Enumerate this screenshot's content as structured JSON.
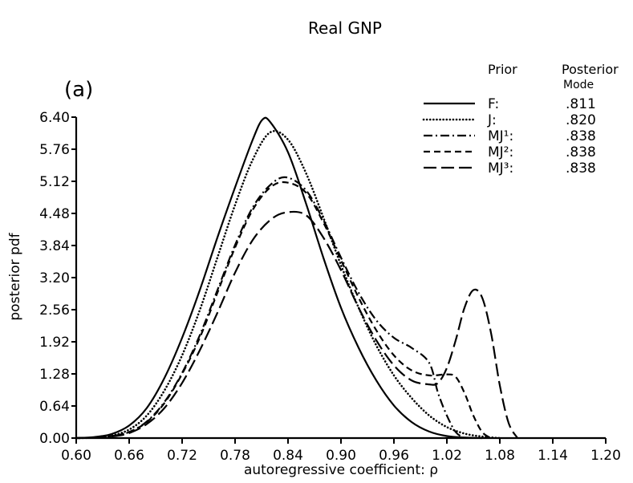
{
  "chart_data": {
    "type": "line",
    "title": "Real GNP",
    "panel_label": "(a)",
    "xlabel": "autoregressive coefficient: ρ",
    "ylabel": "posterior pdf",
    "xlim": [
      0.6,
      1.2
    ],
    "ylim": [
      0.0,
      6.4
    ],
    "x_ticks": [
      "0.60",
      "0.66",
      "0.72",
      "0.78",
      "0.84",
      "0.90",
      "0.96",
      "1.02",
      "1.08",
      "1.14",
      "1.20"
    ],
    "y_ticks": [
      "0.00",
      "0.64",
      "1.28",
      "1.92",
      "2.56",
      "3.20",
      "3.84",
      "4.48",
      "5.12",
      "5.76",
      "6.40"
    ],
    "grid": false,
    "legend": {
      "placement": "top-right",
      "header_prior": "Prior",
      "header_mode_line1": "Posterior",
      "header_mode_line2": "Mode",
      "entries": [
        {
          "label": "F:",
          "mode": ".811"
        },
        {
          "label": "J:",
          "mode": ".820"
        },
        {
          "label": "MJ¹:",
          "mode": ".838"
        },
        {
          "label": "MJ²:",
          "mode": ".838"
        },
        {
          "label": "MJ³:",
          "mode": ".838"
        }
      ]
    },
    "series": [
      {
        "name": "F",
        "dash": "solid",
        "points": [
          [
            0.6,
            0.0
          ],
          [
            0.62,
            0.02
          ],
          [
            0.64,
            0.08
          ],
          [
            0.66,
            0.25
          ],
          [
            0.68,
            0.6
          ],
          [
            0.7,
            1.2
          ],
          [
            0.72,
            2.0
          ],
          [
            0.74,
            2.95
          ],
          [
            0.76,
            4.0
          ],
          [
            0.78,
            5.0
          ],
          [
            0.8,
            5.95
          ],
          [
            0.811,
            6.35
          ],
          [
            0.82,
            6.3
          ],
          [
            0.84,
            5.7
          ],
          [
            0.86,
            4.7
          ],
          [
            0.88,
            3.6
          ],
          [
            0.9,
            2.6
          ],
          [
            0.92,
            1.8
          ],
          [
            0.94,
            1.15
          ],
          [
            0.96,
            0.65
          ],
          [
            0.98,
            0.32
          ],
          [
            1.0,
            0.13
          ],
          [
            1.02,
            0.04
          ],
          [
            1.04,
            0.01
          ],
          [
            1.06,
            0.0
          ]
        ]
      },
      {
        "name": "J",
        "dash": "dotted",
        "points": [
          [
            0.6,
            0.0
          ],
          [
            0.62,
            0.01
          ],
          [
            0.64,
            0.05
          ],
          [
            0.66,
            0.17
          ],
          [
            0.68,
            0.45
          ],
          [
            0.7,
            0.95
          ],
          [
            0.72,
            1.65
          ],
          [
            0.74,
            2.55
          ],
          [
            0.76,
            3.6
          ],
          [
            0.78,
            4.65
          ],
          [
            0.8,
            5.55
          ],
          [
            0.82,
            6.1
          ],
          [
            0.84,
            5.95
          ],
          [
            0.86,
            5.3
          ],
          [
            0.88,
            4.4
          ],
          [
            0.9,
            3.45
          ],
          [
            0.92,
            2.6
          ],
          [
            0.94,
            1.85
          ],
          [
            0.96,
            1.25
          ],
          [
            0.98,
            0.8
          ],
          [
            1.0,
            0.45
          ],
          [
            1.02,
            0.22
          ],
          [
            1.04,
            0.09
          ],
          [
            1.06,
            0.03
          ],
          [
            1.08,
            0.0
          ]
        ]
      },
      {
        "name": "MJ1",
        "dash": "dashdot",
        "points": [
          [
            0.6,
            0.0
          ],
          [
            0.62,
            0.01
          ],
          [
            0.64,
            0.04
          ],
          [
            0.66,
            0.12
          ],
          [
            0.68,
            0.33
          ],
          [
            0.7,
            0.72
          ],
          [
            0.72,
            1.3
          ],
          [
            0.74,
            2.05
          ],
          [
            0.76,
            2.95
          ],
          [
            0.78,
            3.85
          ],
          [
            0.8,
            4.6
          ],
          [
            0.82,
            5.05
          ],
          [
            0.838,
            5.2
          ],
          [
            0.86,
            4.95
          ],
          [
            0.88,
            4.35
          ],
          [
            0.9,
            3.6
          ],
          [
            0.92,
            2.9
          ],
          [
            0.94,
            2.35
          ],
          [
            0.96,
            2.0
          ],
          [
            0.98,
            1.8
          ],
          [
            1.0,
            1.5
          ],
          [
            1.01,
            0.9
          ],
          [
            1.02,
            0.45
          ],
          [
            1.03,
            0.12
          ],
          [
            1.04,
            0.0
          ]
        ]
      },
      {
        "name": "MJ2",
        "dash": "dashed",
        "points": [
          [
            0.6,
            0.0
          ],
          [
            0.62,
            0.01
          ],
          [
            0.64,
            0.04
          ],
          [
            0.66,
            0.12
          ],
          [
            0.68,
            0.32
          ],
          [
            0.7,
            0.7
          ],
          [
            0.72,
            1.28
          ],
          [
            0.74,
            2.0
          ],
          [
            0.76,
            2.9
          ],
          [
            0.78,
            3.8
          ],
          [
            0.8,
            4.55
          ],
          [
            0.82,
            5.0
          ],
          [
            0.838,
            5.1
          ],
          [
            0.86,
            4.9
          ],
          [
            0.88,
            4.3
          ],
          [
            0.9,
            3.55
          ],
          [
            0.92,
            2.8
          ],
          [
            0.94,
            2.15
          ],
          [
            0.96,
            1.65
          ],
          [
            0.98,
            1.35
          ],
          [
            1.0,
            1.25
          ],
          [
            1.02,
            1.27
          ],
          [
            1.03,
            1.22
          ],
          [
            1.04,
            0.9
          ],
          [
            1.05,
            0.45
          ],
          [
            1.06,
            0.12
          ],
          [
            1.07,
            0.0
          ]
        ]
      },
      {
        "name": "MJ3",
        "dash": "longdash",
        "points": [
          [
            0.6,
            0.0
          ],
          [
            0.62,
            0.01
          ],
          [
            0.64,
            0.03
          ],
          [
            0.66,
            0.1
          ],
          [
            0.68,
            0.28
          ],
          [
            0.7,
            0.6
          ],
          [
            0.72,
            1.1
          ],
          [
            0.74,
            1.75
          ],
          [
            0.76,
            2.5
          ],
          [
            0.78,
            3.3
          ],
          [
            0.8,
            3.95
          ],
          [
            0.82,
            4.35
          ],
          [
            0.838,
            4.5
          ],
          [
            0.86,
            4.45
          ],
          [
            0.88,
            4.0
          ],
          [
            0.9,
            3.35
          ],
          [
            0.92,
            2.6
          ],
          [
            0.94,
            1.95
          ],
          [
            0.96,
            1.45
          ],
          [
            0.98,
            1.15
          ],
          [
            1.0,
            1.07
          ],
          [
            1.01,
            1.1
          ],
          [
            1.02,
            1.4
          ],
          [
            1.03,
            1.95
          ],
          [
            1.04,
            2.6
          ],
          [
            1.05,
            2.95
          ],
          [
            1.06,
            2.8
          ],
          [
            1.07,
            2.1
          ],
          [
            1.08,
            1.05
          ],
          [
            1.09,
            0.3
          ],
          [
            1.1,
            0.0
          ]
        ]
      }
    ]
  }
}
